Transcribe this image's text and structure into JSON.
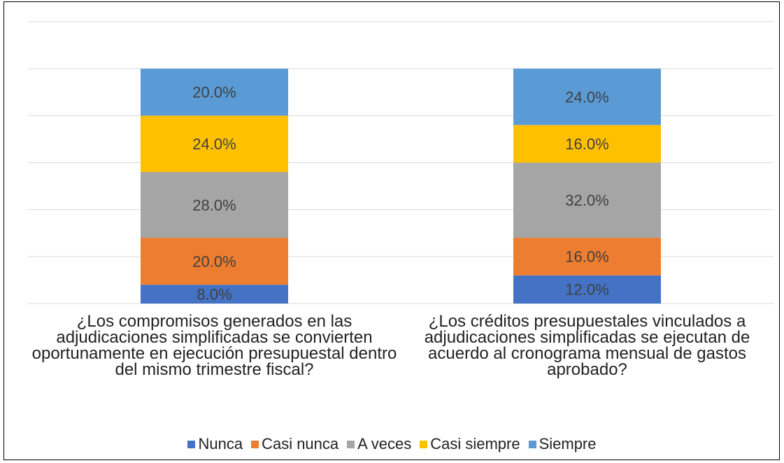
{
  "chart_data": {
    "type": "stacked_bar",
    "categories": [
      "¿Los compromisos generados en las adjudicaciones simplificadas se convierten oportunamente en ejecución presupuestal dentro del mismo trimestre fiscal?",
      "¿Los créditos presupuestales vinculados a adjudicaciones simplificadas se ejecutan de acuerdo al cronograma mensual de gastos aprobado?"
    ],
    "series": [
      {
        "name": "Nunca",
        "color": "#4472c4",
        "values": [
          8,
          12
        ],
        "value_labels": [
          "8.0%",
          "12.0%"
        ]
      },
      {
        "name": "Casi nunca",
        "color": "#ed7d31",
        "values": [
          20,
          16
        ],
        "value_labels": [
          "20.0%",
          "16.0%"
        ]
      },
      {
        "name": "A veces",
        "color": "#a5a5a5",
        "values": [
          28,
          32
        ],
        "value_labels": [
          "28.0%",
          "32.0%"
        ]
      },
      {
        "name": "Casi siempre",
        "color": "#ffc000",
        "values": [
          24,
          16
        ],
        "value_labels": [
          "24.0%",
          "16.0%"
        ]
      },
      {
        "name": "Siempre",
        "color": "#5b9bd5",
        "values": [
          20,
          24
        ],
        "value_labels": [
          "20.0%",
          "24.0%"
        ]
      }
    ],
    "ylim": [
      0,
      120
    ],
    "yticks": [
      0,
      20,
      40,
      60,
      80,
      100,
      120
    ],
    "grid": true,
    "legend": "bottom"
  }
}
